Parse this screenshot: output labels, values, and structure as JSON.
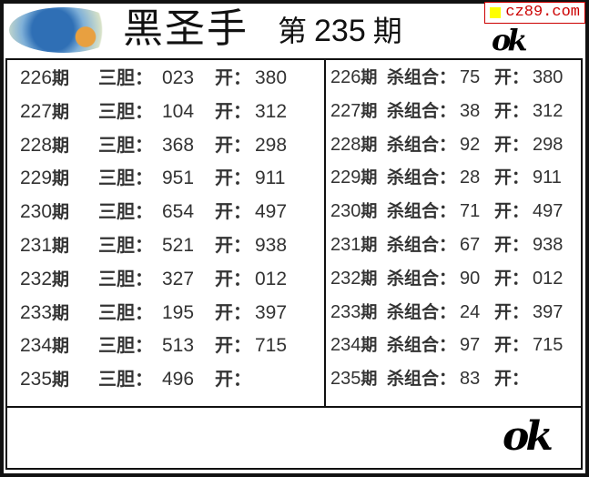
{
  "header": {
    "title": "黑圣手",
    "issue_prefix": "第",
    "issue_number": "235",
    "issue_suffix": "期",
    "site_badge": "cz89.com",
    "mark_text": "ok"
  },
  "left": {
    "label": "三胆：",
    "open_label": "开：",
    "period_suffix": "期",
    "rows": [
      {
        "period": "226",
        "value": "023",
        "open": "380"
      },
      {
        "period": "227",
        "value": "104",
        "open": "312"
      },
      {
        "period": "228",
        "value": "368",
        "open": "298"
      },
      {
        "period": "229",
        "value": "951",
        "open": "911"
      },
      {
        "period": "230",
        "value": "654",
        "open": "497"
      },
      {
        "period": "231",
        "value": "521",
        "open": "938"
      },
      {
        "period": "232",
        "value": "327",
        "open": "012"
      },
      {
        "period": "233",
        "value": "195",
        "open": "397"
      },
      {
        "period": "234",
        "value": "513",
        "open": "715"
      },
      {
        "period": "235",
        "value": "496",
        "open": ""
      }
    ]
  },
  "right": {
    "label": "杀组合：",
    "open_label": "开：",
    "period_suffix": "期",
    "rows": [
      {
        "period": "226",
        "value": "75",
        "open": "380"
      },
      {
        "period": "227",
        "value": "38",
        "open": "312"
      },
      {
        "period": "228",
        "value": "92",
        "open": "298"
      },
      {
        "period": "229",
        "value": "28",
        "open": "911"
      },
      {
        "period": "230",
        "value": "71",
        "open": "497"
      },
      {
        "period": "231",
        "value": "67",
        "open": "938"
      },
      {
        "period": "232",
        "value": "90",
        "open": "012"
      },
      {
        "period": "233",
        "value": "24",
        "open": "397"
      },
      {
        "period": "234",
        "value": "97",
        "open": "715"
      },
      {
        "period": "235",
        "value": "83",
        "open": ""
      }
    ]
  }
}
